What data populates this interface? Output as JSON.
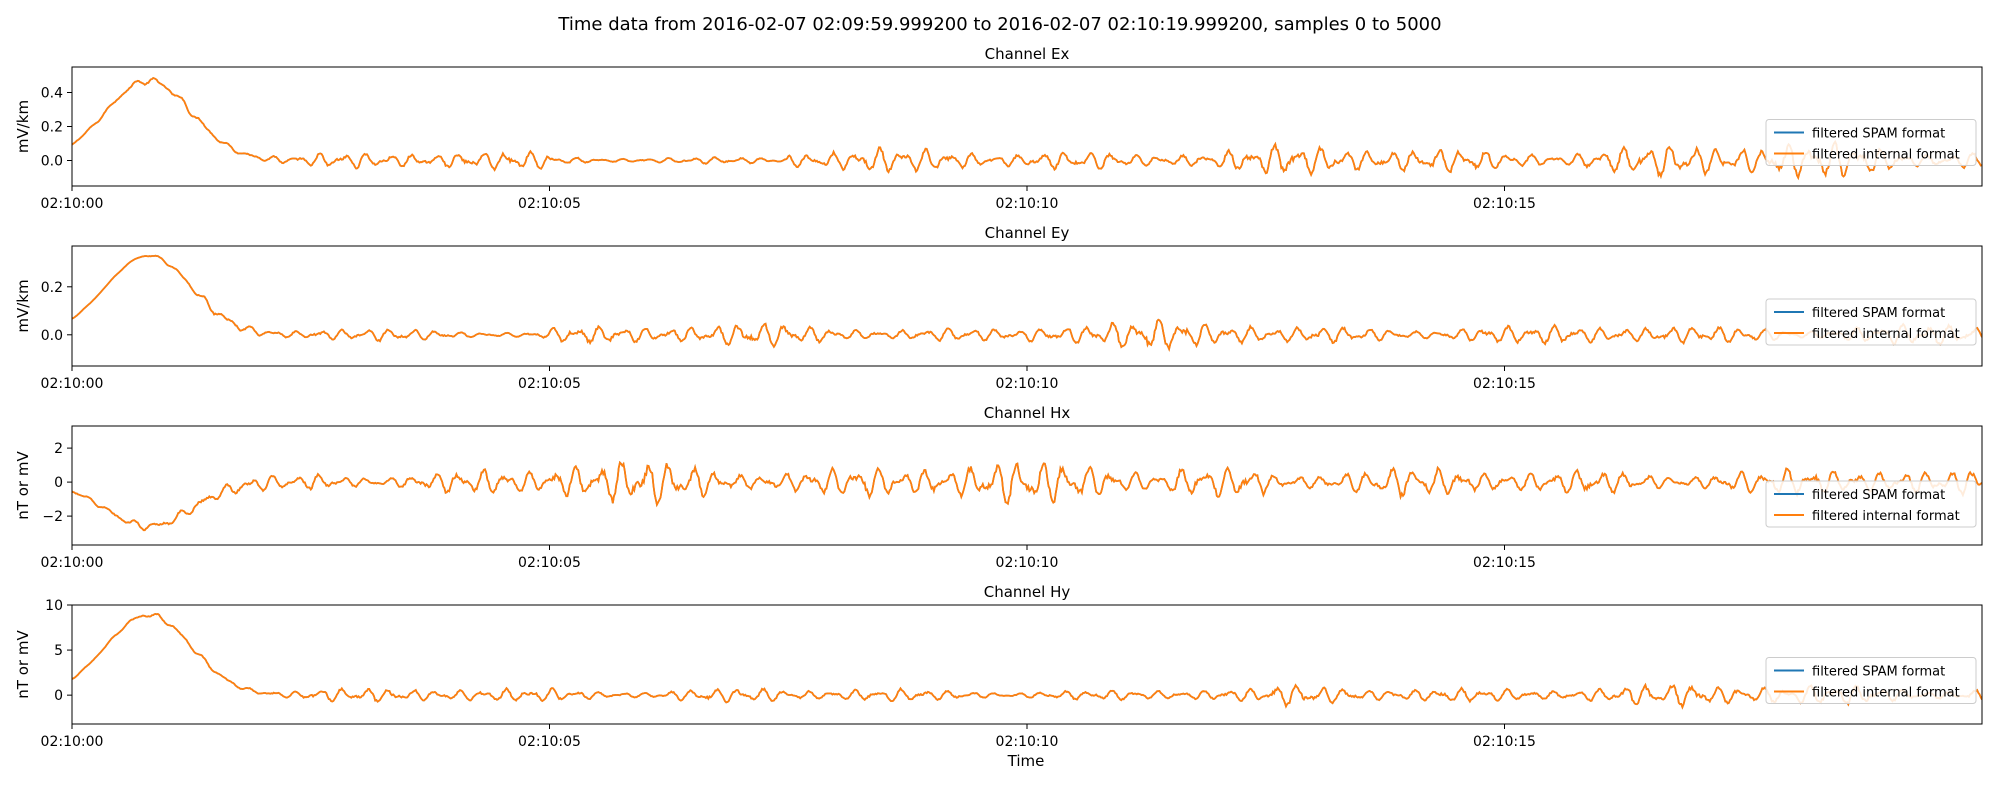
{
  "figure": {
    "suptitle": "Time data from 2016-02-07 02:09:59.999200 to 2016-02-07 02:10:19.999200, samples 0 to 5000",
    "xlabel": "Time"
  },
  "colors": {
    "spam": "#1f77b4",
    "internal": "#ff7f0e",
    "axis": "#000000",
    "legend_border": "#cccccc"
  },
  "chart_data": [
    {
      "type": "line",
      "title": "Channel Ex",
      "ylabel": "mV/km",
      "xlim": [
        "02:10:00",
        "02:10:20"
      ],
      "ylim": [
        -0.15,
        0.55
      ],
      "yticks": [
        0.0,
        0.2,
        0.4
      ],
      "ytick_labels": [
        "0.0",
        "0.2",
        "0.4"
      ],
      "xticks": [
        "02:10:00",
        "02:10:05",
        "02:10:10",
        "02:10:15"
      ],
      "legend": {
        "placement": "right",
        "entries": [
          "filtered SPAM format",
          "filtered internal format"
        ]
      },
      "series": [
        {
          "name": "filtered SPAM format",
          "color": "#1f77b4",
          "hump": {
            "peak_time": "02:10:00.8",
            "peak": 0.47,
            "width_s": 0.45
          },
          "noise_amplitude": [
            0.035,
            0.04,
            0.02,
            0.05,
            0.055,
            0.065,
            0.075,
            0.08
          ]
        },
        {
          "name": "filtered internal format",
          "color": "#ff7f0e",
          "hump": {
            "peak_time": "02:10:00.8",
            "peak": 0.47,
            "width_s": 0.45
          },
          "noise_amplitude": [
            0.035,
            0.04,
            0.02,
            0.05,
            0.055,
            0.065,
            0.075,
            0.08
          ]
        }
      ]
    },
    {
      "type": "line",
      "title": "Channel Ey",
      "ylabel": "mV/km",
      "xlim": [
        "02:10:00",
        "02:10:20"
      ],
      "ylim": [
        -0.13,
        0.37
      ],
      "yticks": [
        0.0,
        0.2
      ],
      "ytick_labels": [
        "0.0",
        "0.2"
      ],
      "xticks": [
        "02:10:00",
        "02:10:05",
        "02:10:10",
        "02:10:15"
      ],
      "legend": {
        "placement": "right",
        "entries": [
          "filtered SPAM format",
          "filtered internal format"
        ]
      },
      "series": [
        {
          "name": "filtered SPAM format",
          "color": "#1f77b4",
          "hump": {
            "peak_time": "02:10:00.8",
            "peak": 0.33,
            "width_s": 0.45
          },
          "noise_amplitude": [
            0.015,
            0.02,
            0.035,
            0.03,
            0.045,
            0.035,
            0.03,
            0.04
          ]
        },
        {
          "name": "filtered internal format",
          "color": "#ff7f0e",
          "hump": {
            "peak_time": "02:10:00.8",
            "peak": 0.33,
            "width_s": 0.45
          },
          "noise_amplitude": [
            0.015,
            0.02,
            0.035,
            0.03,
            0.045,
            0.035,
            0.03,
            0.04
          ]
        }
      ]
    },
    {
      "type": "line",
      "title": "Channel Hx",
      "ylabel": "nT or mV",
      "xlim": [
        "02:10:00",
        "02:10:20"
      ],
      "ylim": [
        -3.7,
        3.3
      ],
      "yticks": [
        -2,
        0,
        2
      ],
      "ytick_labels": [
        "−2",
        "0",
        "2"
      ],
      "xticks": [
        "02:10:00",
        "02:10:05",
        "02:10:10",
        "02:10:15"
      ],
      "legend": {
        "placement": "lower right",
        "entries": [
          "filtered SPAM format",
          "filtered internal format"
        ]
      },
      "series": [
        {
          "name": "filtered SPAM format",
          "color": "#1f77b4",
          "hump": {
            "peak_time": "02:10:00.8",
            "peak": -2.6,
            "width_s": 0.45
          },
          "noise_amplitude": [
            0.4,
            0.6,
            1.0,
            0.9,
            1.0,
            0.6,
            0.7,
            0.6
          ]
        },
        {
          "name": "filtered internal format",
          "color": "#ff7f0e",
          "hump": {
            "peak_time": "02:10:00.8",
            "peak": -2.6,
            "width_s": 0.45
          },
          "noise_amplitude": [
            0.4,
            0.6,
            1.0,
            0.9,
            1.0,
            0.6,
            0.7,
            0.6
          ]
        }
      ]
    },
    {
      "type": "line",
      "title": "Channel Hy",
      "ylabel": "nT or mV",
      "xlim": [
        "02:10:00",
        "02:10:20"
      ],
      "ylim": [
        -3.2,
        10
      ],
      "yticks": [
        0,
        5,
        10
      ],
      "ytick_labels": [
        "0",
        "5",
        "10"
      ],
      "xticks": [
        "02:10:00",
        "02:10:05",
        "02:10:10",
        "02:10:15"
      ],
      "legend": {
        "placement": "right",
        "entries": [
          "filtered SPAM format",
          "filtered internal format"
        ]
      },
      "series": [
        {
          "name": "filtered SPAM format",
          "color": "#1f77b4",
          "hump": {
            "peak_time": "02:10:00.8",
            "peak": 8.9,
            "width_s": 0.45
          },
          "noise_amplitude": [
            0.5,
            0.6,
            0.7,
            0.5,
            0.6,
            0.8,
            0.9,
            1.0
          ]
        },
        {
          "name": "filtered internal format",
          "color": "#ff7f0e",
          "hump": {
            "peak_time": "02:10:00.8",
            "peak": 8.9,
            "width_s": 0.45
          },
          "noise_amplitude": [
            0.5,
            0.6,
            0.7,
            0.5,
            0.6,
            0.8,
            0.9,
            1.0
          ]
        }
      ]
    }
  ]
}
